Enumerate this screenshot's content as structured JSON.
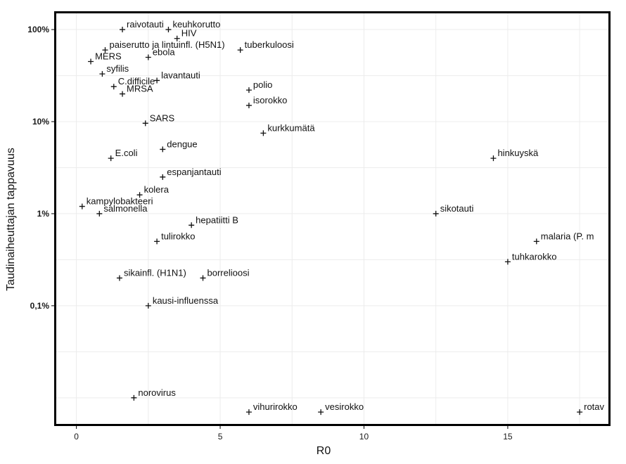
{
  "chart_data": {
    "type": "scatter",
    "xlabel": "R0",
    "ylabel": "Taudinaiheuttajan tappavuus",
    "xlim": [
      -0.7,
      18.5
    ],
    "ylim_percent": [
      0.0052,
      150
    ],
    "y_scale": "log",
    "grid": true,
    "x_ticks": [
      {
        "value": 0,
        "label": "0"
      },
      {
        "value": 5,
        "label": "5"
      },
      {
        "value": 10,
        "label": "10"
      },
      {
        "value": 15,
        "label": "15"
      }
    ],
    "y_ticks": [
      {
        "value": 100,
        "label": "100%"
      },
      {
        "value": 10,
        "label": "10%"
      },
      {
        "value": 1,
        "label": "1%"
      },
      {
        "value": 0.1,
        "label": "0,1%"
      }
    ],
    "y_minor_gridlines": [
      31.6,
      3.16,
      0.316,
      0.0316,
      0.01
    ],
    "x_minor_gridlines": [
      2.5,
      7.5,
      12.5,
      17.5
    ],
    "points": [
      {
        "label": "raivotauti",
        "x": 1.6,
        "y": 100
      },
      {
        "label": "keuhkorutto",
        "x": 3.2,
        "y": 100
      },
      {
        "label": "HIV",
        "x": 3.5,
        "y": 80
      },
      {
        "label": "paiserutto ja lintuinfl. (H5N1)",
        "x": 1.0,
        "y": 60
      },
      {
        "label": "tuberkuloosi",
        "x": 5.7,
        "y": 60
      },
      {
        "label": "MERS",
        "x": 0.5,
        "y": 45
      },
      {
        "label": "ebola",
        "x": 2.5,
        "y": 50
      },
      {
        "label": "syfilis",
        "x": 0.9,
        "y": 33
      },
      {
        "label": "lavantauti",
        "x": 2.8,
        "y": 28
      },
      {
        "label": "C.difficile",
        "x": 1.3,
        "y": 24
      },
      {
        "label": "MRSA",
        "x": 1.6,
        "y": 20
      },
      {
        "label": "polio",
        "x": 6.0,
        "y": 22
      },
      {
        "label": "isorokko",
        "x": 6.0,
        "y": 15
      },
      {
        "label": "SARS",
        "x": 2.4,
        "y": 9.6
      },
      {
        "label": "kurkkumätä",
        "x": 6.5,
        "y": 7.5
      },
      {
        "label": "dengue",
        "x": 3.0,
        "y": 5.0
      },
      {
        "label": "E.coli",
        "x": 1.2,
        "y": 4.0
      },
      {
        "label": "hinkuyskä",
        "x": 14.5,
        "y": 4.0
      },
      {
        "label": "espanjantauti",
        "x": 3.0,
        "y": 2.5
      },
      {
        "label": "kolera",
        "x": 2.2,
        "y": 1.6
      },
      {
        "label": "kampylobakteeri",
        "x": 0.2,
        "y": 1.2
      },
      {
        "label": "salmonella",
        "x": 0.8,
        "y": 1.0
      },
      {
        "label": "sikotauti",
        "x": 12.5,
        "y": 1.0
      },
      {
        "label": "hepatiitti B",
        "x": 4.0,
        "y": 0.75
      },
      {
        "label": "tulirokko",
        "x": 2.8,
        "y": 0.5
      },
      {
        "label": "malaria (P. m",
        "x": 16.0,
        "y": 0.5
      },
      {
        "label": "tuhkarokko",
        "x": 15.0,
        "y": 0.3
      },
      {
        "label": "sikainfl. (H1N1)",
        "x": 1.5,
        "y": 0.2
      },
      {
        "label": "borrelioosi",
        "x": 4.4,
        "y": 0.2
      },
      {
        "label": "kausi-influenssa",
        "x": 2.5,
        "y": 0.1
      },
      {
        "label": "norovirus",
        "x": 2.0,
        "y": 0.01
      },
      {
        "label": "vihurirokko",
        "x": 6.0,
        "y": 0.007
      },
      {
        "label": "vesirokko",
        "x": 8.5,
        "y": 0.007
      },
      {
        "label": "rotav",
        "x": 17.5,
        "y": 0.007
      }
    ]
  }
}
